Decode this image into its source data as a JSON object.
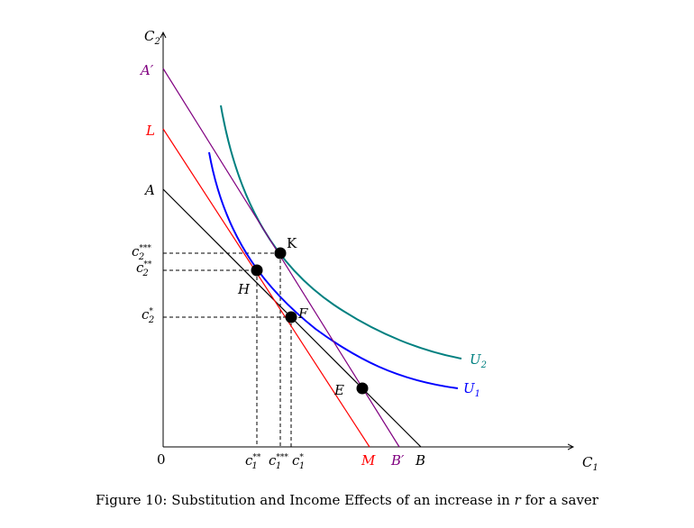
{
  "axes": {
    "y_label": "C",
    "y_label_sub": "2",
    "x_label": "C",
    "x_label_sub": "1",
    "origin": "0"
  },
  "y_ticks": [
    {
      "id": "a-prime",
      "text": "A′",
      "color": "#800080"
    },
    {
      "id": "l",
      "text": "L",
      "color": "#ff0000"
    },
    {
      "id": "a",
      "text": "A",
      "color": "#000000"
    }
  ],
  "c2_labels": [
    {
      "id": "c2-triple",
      "base": "c",
      "sub": "2",
      "sup": "***"
    },
    {
      "id": "c2-double",
      "base": "c",
      "sub": "2",
      "sup": "**"
    },
    {
      "id": "c2-single",
      "base": "c",
      "sub": "2",
      "sup": "*"
    }
  ],
  "c1_labels": [
    {
      "id": "c1-double",
      "base": "c",
      "sub": "1",
      "sup": "**"
    },
    {
      "id": "c1-triple",
      "base": "c",
      "sub": "1",
      "sup": "***"
    },
    {
      "id": "c1-single",
      "base": "c",
      "sub": "1",
      "sup": "*"
    }
  ],
  "x_ticks": [
    {
      "id": "m",
      "text": "M",
      "color": "#ff0000"
    },
    {
      "id": "b-prime",
      "text": "B′",
      "color": "#800080"
    },
    {
      "id": "b",
      "text": "B",
      "color": "#000000"
    }
  ],
  "points": [
    {
      "id": "k",
      "text": "K"
    },
    {
      "id": "h",
      "text": "H"
    },
    {
      "id": "f",
      "text": "F"
    },
    {
      "id": "e",
      "text": "E"
    }
  ],
  "curves": [
    {
      "id": "u2",
      "text": "U",
      "sub": "2",
      "color": "#008080"
    },
    {
      "id": "u1",
      "text": "U",
      "sub": "1",
      "color": "#0000ff"
    }
  ],
  "lines": {
    "ab_color": "#000000",
    "lm_color": "#ff0000",
    "apbp_color": "#800080"
  },
  "caption": {
    "prefix": "Figure 10: Substitution and Income Effects of an increase in ",
    "var": "r",
    "suffix": " for a saver"
  }
}
